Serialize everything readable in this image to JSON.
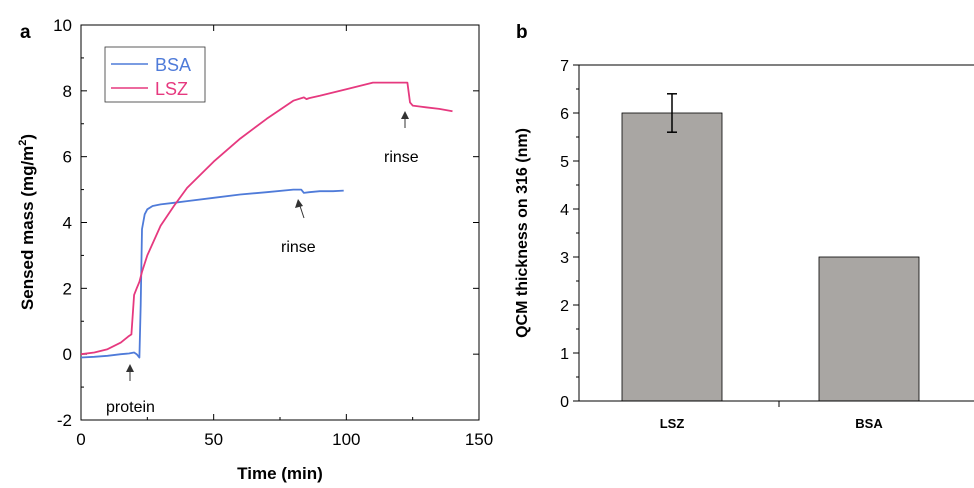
{
  "panel_a_letter": "a",
  "panel_b_letter": "b",
  "colors": {
    "BSA": "#4f7bd9",
    "LSZ": "#e6397f",
    "bar": "#a9a6a3",
    "axis": "#000000"
  },
  "chart_data": [
    {
      "type": "line",
      "title": "",
      "xlabel": "Time (min)",
      "ylabel": "Sensed mass (mg/m²)",
      "ylabel_main": "Sensed mass (mg/m",
      "ylabel_sup": "2",
      "ylabel_close": ")",
      "xlim": [
        0,
        150
      ],
      "ylim": [
        -2,
        10
      ],
      "xticks": [
        0,
        50,
        100,
        150
      ],
      "yticks": [
        -2,
        0,
        2,
        4,
        6,
        8,
        10
      ],
      "grid": false,
      "legend_position": "top-left",
      "series": [
        {
          "name": "BSA",
          "x": [
            0,
            5,
            10,
            15,
            18,
            20,
            21,
            22,
            22.5,
            23,
            24,
            25,
            27,
            30,
            35,
            40,
            50,
            60,
            70,
            80,
            83,
            84,
            86,
            90,
            95,
            99
          ],
          "y": [
            -0.1,
            -0.08,
            -0.05,
            0.0,
            0.02,
            0.05,
            0.0,
            -0.1,
            1.5,
            3.8,
            4.25,
            4.4,
            4.5,
            4.55,
            4.6,
            4.65,
            4.75,
            4.85,
            4.92,
            5.0,
            5.0,
            4.9,
            4.92,
            4.95,
            4.95,
            4.97
          ]
        },
        {
          "name": "LSZ",
          "x": [
            0,
            5,
            10,
            15,
            18,
            19,
            20,
            21,
            22,
            23,
            25,
            30,
            35,
            40,
            50,
            60,
            70,
            80,
            84,
            85,
            86,
            90,
            100,
            110,
            115,
            120,
            123,
            124,
            125,
            128,
            130,
            135,
            140
          ],
          "y": [
            0.0,
            0.05,
            0.15,
            0.35,
            0.55,
            0.6,
            1.8,
            2.0,
            2.2,
            2.5,
            3.0,
            3.9,
            4.5,
            5.05,
            5.85,
            6.55,
            7.15,
            7.7,
            7.8,
            7.75,
            7.78,
            7.85,
            8.05,
            8.25,
            8.25,
            8.25,
            8.25,
            7.65,
            7.55,
            7.52,
            7.5,
            7.45,
            7.38
          ]
        }
      ],
      "annotations": [
        {
          "text": "protein",
          "x": 22
        },
        {
          "text": "rinse",
          "x": 84
        },
        {
          "text": "rinse",
          "x": 124
        }
      ]
    },
    {
      "type": "bar",
      "title": "",
      "xlabel": "",
      "ylabel": "QCM thickness on 316 (nm)",
      "categories": [
        "LSZ",
        "BSA"
      ],
      "values": [
        6.0,
        3.0
      ],
      "errors": [
        0.4,
        null
      ],
      "ylim": [
        0,
        7
      ],
      "yticks": [
        0,
        1,
        2,
        3,
        4,
        5,
        6,
        7
      ],
      "grid": false
    }
  ]
}
